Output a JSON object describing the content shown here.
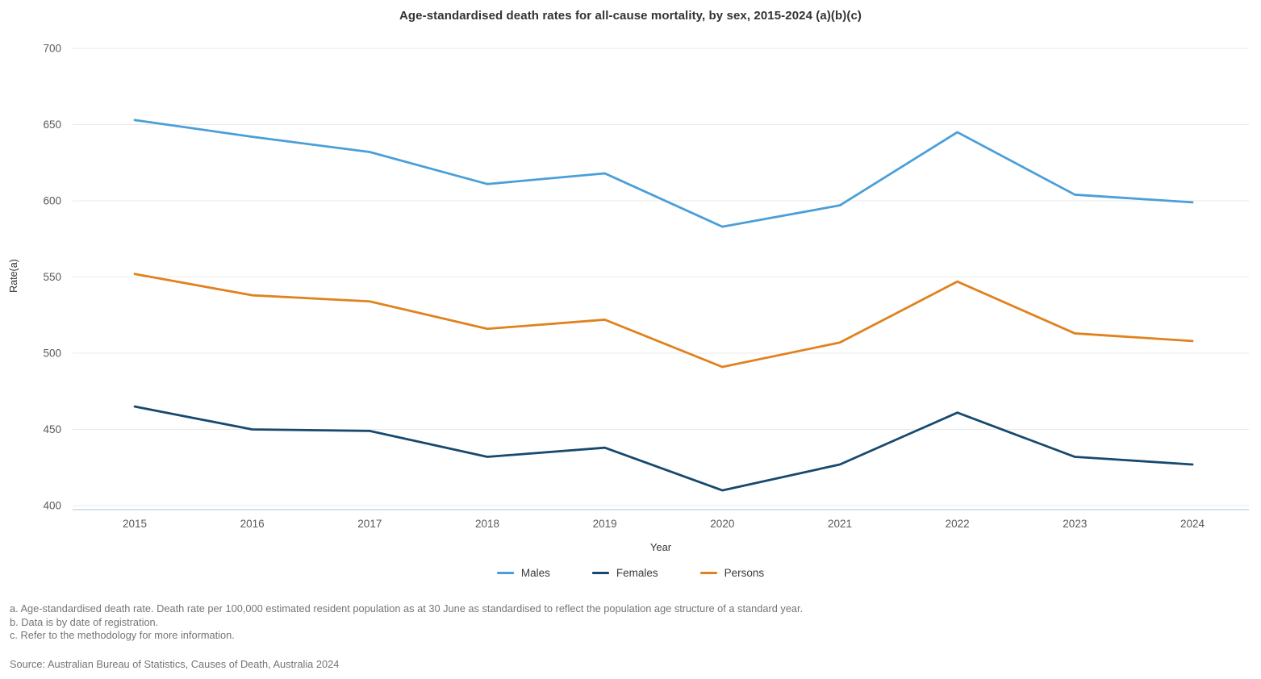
{
  "title": "Age-standardised death rates for all-cause mortality, by sex, 2015-2024 (a)(b)(c)",
  "chart_data": {
    "type": "line",
    "x": [
      2015,
      2016,
      2017,
      2018,
      2019,
      2020,
      2021,
      2022,
      2023,
      2024
    ],
    "xlabel": "Year",
    "ylabel": "Rate(a)",
    "ylim": [
      400,
      700
    ],
    "yticks": [
      400,
      450,
      500,
      550,
      600,
      650,
      700
    ],
    "grid": "horizontal-light-gray",
    "legend_position": "bottom",
    "series": [
      {
        "name": "Males",
        "color": "#4A9FD8",
        "values": [
          653,
          642,
          632,
          611,
          618,
          583,
          597,
          645,
          604,
          599
        ]
      },
      {
        "name": "Females",
        "color": "#17496F",
        "values": [
          465,
          450,
          449,
          432,
          438,
          410,
          427,
          461,
          432,
          427
        ]
      },
      {
        "name": "Persons",
        "color": "#E0821E",
        "values": [
          552,
          538,
          534,
          516,
          522,
          491,
          507,
          547,
          513,
          508
        ]
      }
    ]
  },
  "footnotes": [
    "a. Age-standardised death rate. Death rate per 100,000 estimated resident population as at 30 June as standardised to reflect the population age structure of a standard year.",
    "b. Data is by date of registration.",
    "c. Refer to the methodology for more information."
  ],
  "source": "Source: Australian Bureau of Statistics, Causes of Death, Australia 2024",
  "colors": {
    "males_line": "#4A9FD8",
    "females_line": "#17496F",
    "persons_line": "#E0821E",
    "gridline": "#E9E9E9",
    "axis_line": "#C9DAE9",
    "tick_label": "#5A5A5A",
    "title_text": "#333333",
    "footnote_text": "#757575"
  }
}
